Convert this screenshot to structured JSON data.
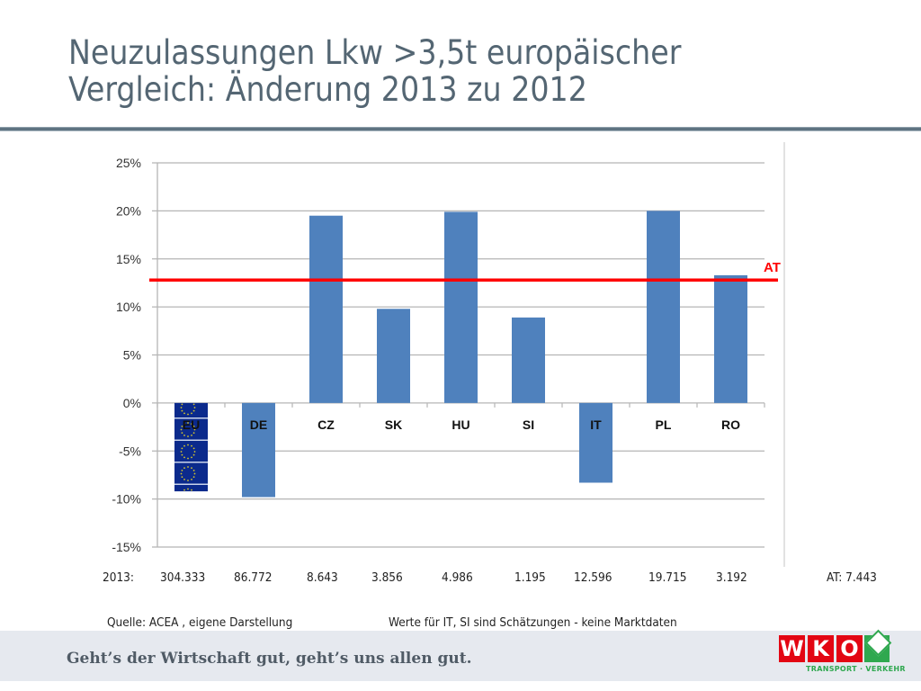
{
  "slide": {
    "title_line1": "Neuzulassungen Lkw >3,5t europäischer",
    "title_line2": "Vergleich: Änderung 2013 zu 2012"
  },
  "chart_data": {
    "type": "bar",
    "title": "",
    "xlabel": "",
    "ylabel": "",
    "categories": [
      "EU",
      "DE",
      "CZ",
      "SK",
      "HU",
      "SI",
      "IT",
      "PL",
      "RO"
    ],
    "values": [
      -9.2,
      -9.8,
      19.5,
      9.8,
      19.9,
      8.9,
      -8.3,
      20.0,
      13.3
    ],
    "unit": "%",
    "ylim": [
      -15,
      25
    ],
    "yticks": [
      25,
      20,
      15,
      10,
      5,
      0,
      -5,
      -10,
      -15
    ],
    "ytick_labels": [
      "25%",
      "20%",
      "15%",
      "10%",
      "5%",
      "0%",
      "-5%",
      "-10%",
      "-15%"
    ],
    "grid": true,
    "bar_color": "#4f81bd",
    "eu_bar_style": "eu-flag",
    "eu_flag_color": "#0b2a8c",
    "eu_star_color": "#d7c72a",
    "reference_line": {
      "label": "AT",
      "value": 12.8,
      "color": "#ff0000"
    }
  },
  "registrations_2013": {
    "label": "2013:",
    "values": [
      "304.333",
      "86.772",
      "8.643",
      "3.856",
      "4.986",
      "1.195",
      "12.596",
      "19.715",
      "3.192"
    ],
    "at_label": "AT: 7.443"
  },
  "notes": {
    "source": "Quelle: ACEA , eigene Darstellung",
    "remark": "Werte für IT, SI sind Schätzungen - keine Marktdaten"
  },
  "footer": {
    "slogan": "Geht’s der Wirtschaft gut, geht’s uns allen gut.",
    "logo_letters": [
      "W",
      "K",
      "O"
    ],
    "logo_subtitle": "TRANSPORT · VERKEHR"
  }
}
